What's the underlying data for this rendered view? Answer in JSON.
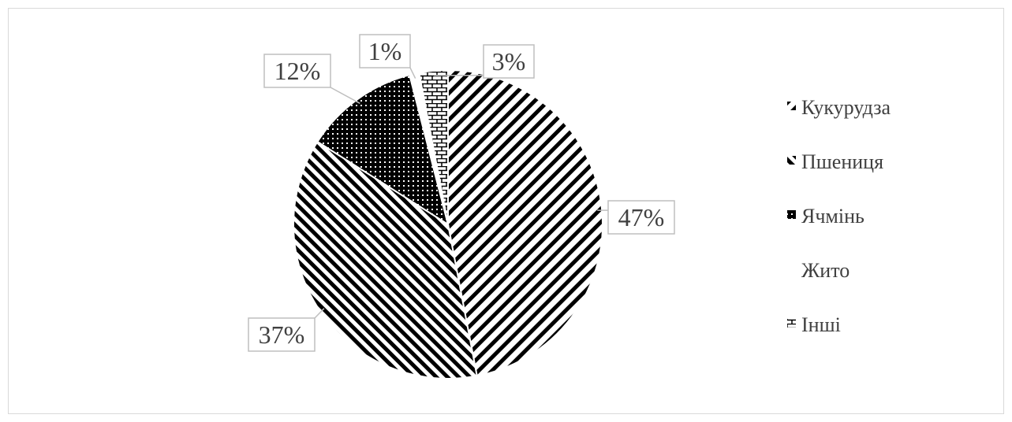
{
  "chart_data": {
    "type": "pie",
    "title": "",
    "categories": [
      "Кукурудза",
      "Пшениця",
      "Ячмінь",
      "Жито",
      "Інші"
    ],
    "values": [
      47,
      37,
      12,
      1,
      3
    ],
    "data_labels": [
      "47%",
      "37%",
      "12%",
      "1%",
      "3%"
    ],
    "start": "12 o'clock",
    "direction": "clockwise",
    "legend_position": "right",
    "patterns": [
      "diagonal-hatch",
      "diagonal-hatch-dense",
      "dots",
      "none",
      "brick"
    ],
    "colors": {
      "ink": "#000000",
      "label_border": "#bfbfbf",
      "frame_border": "#d9d9d9",
      "text": "#404040"
    }
  }
}
